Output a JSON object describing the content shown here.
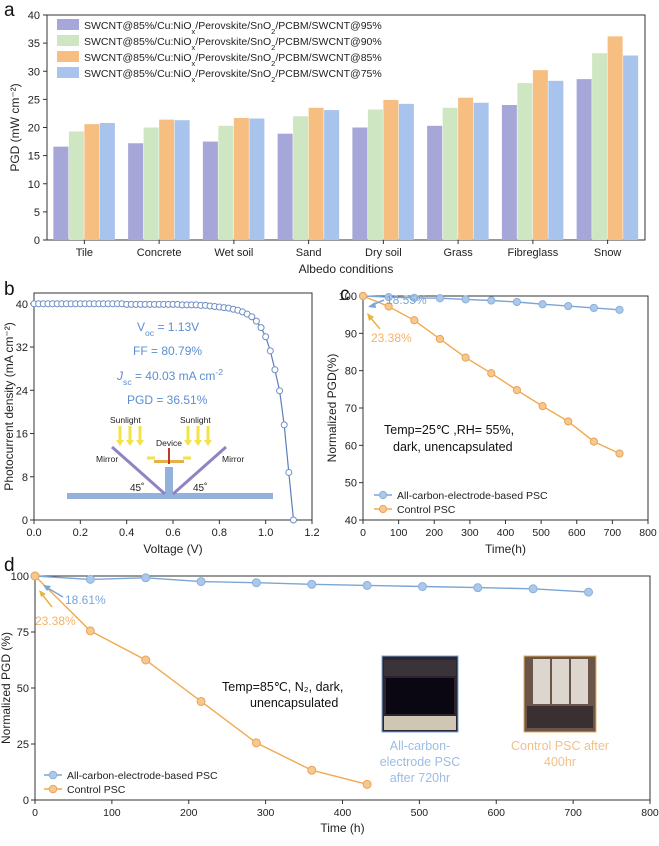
{
  "colors": {
    "s95": "#a6a6d8",
    "s90": "#cfe6c2",
    "s85": "#f7be82",
    "s75": "#a9c4ec",
    "axis": "#333333",
    "blueLine": "#7aa6d6",
    "blueMarker": "#a9c8ea",
    "orangeLine": "#f2a94e",
    "orangeMarker": "#f7c88e"
  },
  "chart_data": [
    {
      "panel_label": "a",
      "type": "bar",
      "title": "",
      "xlabel": "Albedo conditions",
      "ylabel": "PGD (mW cm⁻²)",
      "ylim": [
        0,
        40
      ],
      "yticks": [
        0,
        5,
        10,
        15,
        20,
        25,
        30,
        35,
        40
      ],
      "categories": [
        "Tile",
        "Concrete",
        "Wet soil",
        "Sand",
        "Dry soil",
        "Grass",
        "Fibreglass",
        "Snow"
      ],
      "legend_position": "top-left",
      "series": [
        {
          "name": "SWCNT@85%/Cu:NiOₓ/Perovskite/SnO₂/PCBM/SWCNT@95%",
          "values": [
            16.6,
            17.2,
            17.5,
            18.9,
            20.0,
            20.3,
            24.0,
            28.6
          ]
        },
        {
          "name": "SWCNT@85%/Cu:NiOₓ/Perovskite/SnO₂/PCBM/SWCNT@90%",
          "values": [
            19.3,
            20.0,
            20.3,
            22.0,
            23.2,
            23.5,
            27.9,
            33.2
          ]
        },
        {
          "name": "SWCNT@85%/Cu:NiOₓ/Perovskite/SnO₂/PCBM/SWCNT@85%",
          "values": [
            20.6,
            21.4,
            21.7,
            23.5,
            24.9,
            25.3,
            30.2,
            36.2
          ]
        },
        {
          "name": "SWCNT@85%/Cu:NiOₓ/Perovskite/SnO₂/PCBM/SWCNT@75%",
          "values": [
            20.8,
            21.3,
            21.6,
            23.1,
            24.2,
            24.4,
            28.3,
            32.8
          ]
        }
      ]
    },
    {
      "panel_label": "b",
      "type": "scatter",
      "xlabel": "Voltage (V)",
      "ylabel": "Photocurrent density (mA cm⁻²)",
      "xlim": [
        0,
        1.2
      ],
      "ylim": [
        0,
        42
      ],
      "xticks": [
        "0.0",
        "0.2",
        "0.4",
        "0.6",
        "0.8",
        "1.0",
        "1.2"
      ],
      "yticks": [
        0,
        8,
        16,
        24,
        32,
        40
      ],
      "x": [
        0.0,
        0.02,
        0.04,
        0.06,
        0.08,
        0.1,
        0.12,
        0.14,
        0.16,
        0.18,
        0.2,
        0.22,
        0.24,
        0.26,
        0.28,
        0.3,
        0.32,
        0.34,
        0.36,
        0.38,
        0.4,
        0.42,
        0.44,
        0.46,
        0.48,
        0.5,
        0.52,
        0.54,
        0.56,
        0.58,
        0.6,
        0.62,
        0.64,
        0.66,
        0.68,
        0.7,
        0.72,
        0.74,
        0.76,
        0.78,
        0.8,
        0.82,
        0.84,
        0.86,
        0.88,
        0.9,
        0.92,
        0.94,
        0.96,
        0.98,
        1.0,
        1.02,
        1.04,
        1.06,
        1.08,
        1.1,
        1.12
      ],
      "y": [
        40.0,
        40.0,
        40.0,
        40.0,
        40.0,
        40.0,
        40.0,
        40.0,
        40.0,
        40.0,
        40.0,
        40.0,
        40.0,
        40.0,
        40.0,
        40.0,
        40.0,
        40.0,
        40.0,
        40.0,
        39.9,
        39.9,
        39.9,
        39.9,
        39.9,
        39.9,
        39.9,
        39.9,
        39.9,
        39.9,
        39.9,
        39.9,
        39.8,
        39.8,
        39.8,
        39.8,
        39.7,
        39.7,
        39.6,
        39.5,
        39.4,
        39.3,
        39.2,
        39.0,
        38.8,
        38.5,
        38.1,
        37.6,
        36.8,
        35.6,
        33.9,
        31.3,
        27.8,
        23.9,
        17.6,
        8.8,
        0.0
      ],
      "annotations": [
        {
          "id": "voc",
          "sym": "V",
          "sub": "oc",
          "rest": " = 1.13V"
        },
        {
          "id": "ff",
          "text": "FF = 80.79%"
        },
        {
          "id": "jsc",
          "sym": "J",
          "sub": "sc",
          "rest": " = 40.03 mA cm",
          "sup": "-2"
        },
        {
          "id": "pgd",
          "text": "PGD = 36.51%"
        }
      ],
      "inset_labels": {
        "sunlight_left": "Sunlight",
        "sunlight_right": "Sunlight",
        "device": "Device",
        "mirror_left": "Mirror",
        "mirror_right": "Mirror",
        "angle_left": "45˚",
        "angle_right": "45˚"
      }
    },
    {
      "panel_label": "c",
      "type": "line",
      "xlabel": "Time(h)",
      "ylabel": "Normalized PGD(%)",
      "xlim": [
        0,
        800
      ],
      "ylim": [
        40,
        100
      ],
      "xticks": [
        0,
        100,
        200,
        300,
        400,
        500,
        600,
        700,
        800
      ],
      "yticks": [
        40,
        50,
        60,
        70,
        80,
        90,
        100
      ],
      "series": [
        {
          "name": "All-carbon-electrode-based PSC",
          "x": [
            0,
            72,
            144,
            216,
            288,
            360,
            432,
            504,
            576,
            648,
            720
          ],
          "values": [
            100,
            99.7,
            99.5,
            99.4,
            99.1,
            98.8,
            98.4,
            97.8,
            97.3,
            96.8,
            96.3
          ]
        },
        {
          "name": "Control PSC",
          "x": [
            0,
            72,
            144,
            216,
            288,
            360,
            432,
            504,
            576,
            648,
            720
          ],
          "values": [
            100,
            97.2,
            93.5,
            88.5,
            83.5,
            79.3,
            74.8,
            70.5,
            66.4,
            61.0,
            57.8
          ]
        }
      ],
      "annotations": [
        {
          "text": "18.55%",
          "color": "blue"
        },
        {
          "text": "23.38%",
          "color": "orange"
        },
        {
          "text": "Temp=25℃ ,RH= 55%,"
        },
        {
          "text": "dark, unencapsulated"
        }
      ],
      "legend_position": "bottom-left"
    },
    {
      "panel_label": "d",
      "type": "line",
      "xlabel": "Time (h)",
      "ylabel": "Normalized PGD (%)",
      "xlim": [
        0,
        800
      ],
      "ylim": [
        0,
        100
      ],
      "xticks": [
        0,
        100,
        200,
        300,
        400,
        500,
        600,
        700,
        800
      ],
      "yticks": [
        0,
        25,
        50,
        75,
        100
      ],
      "series": [
        {
          "name": "All-carbon-electrode-based PSC",
          "x": [
            0,
            72,
            144,
            216,
            288,
            360,
            432,
            504,
            576,
            648,
            720
          ],
          "values": [
            100,
            98.5,
            99.2,
            97.5,
            97.0,
            96.3,
            95.8,
            95.3,
            94.8,
            94.3,
            92.8
          ]
        },
        {
          "name": "Control PSC",
          "x": [
            0,
            72,
            144,
            216,
            288,
            360,
            432
          ],
          "values": [
            100,
            75.5,
            62.5,
            44.0,
            25.5,
            13.3,
            7.0
          ]
        }
      ],
      "annotations": [
        {
          "text": "18.61%",
          "color": "blue"
        },
        {
          "text": "23.38%",
          "color": "orange"
        },
        {
          "text": "Temp=85℃, N₂, dark,"
        },
        {
          "text": "unencapsulated"
        }
      ],
      "photo_captions": {
        "left": [
          "All-carbon-",
          "electrode PSC",
          "after 720hr"
        ],
        "right": [
          "Control PSC after",
          "400hr"
        ]
      },
      "legend_position": "bottom-left"
    }
  ]
}
